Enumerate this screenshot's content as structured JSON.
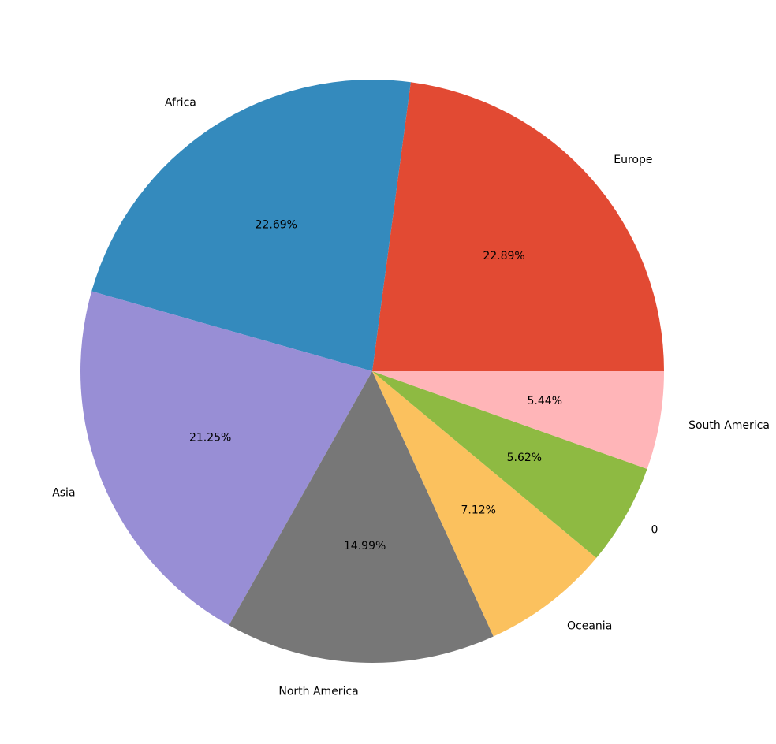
{
  "chart_data": {
    "type": "pie",
    "categories": [
      "Europe",
      "Africa",
      "Asia",
      "North America",
      "Oceania",
      "0",
      "South America"
    ],
    "values": [
      22.89,
      22.69,
      21.25,
      14.99,
      7.12,
      5.62,
      5.44
    ],
    "value_labels": [
      "22.89%",
      "22.69%",
      "21.25%",
      "14.99%",
      "7.12%",
      "5.62%",
      "5.44%"
    ],
    "colors": [
      "#E24A33",
      "#348ABD",
      "#988ED5",
      "#777777",
      "#FBC15E",
      "#8EBA42",
      "#FFB5B8"
    ]
  }
}
